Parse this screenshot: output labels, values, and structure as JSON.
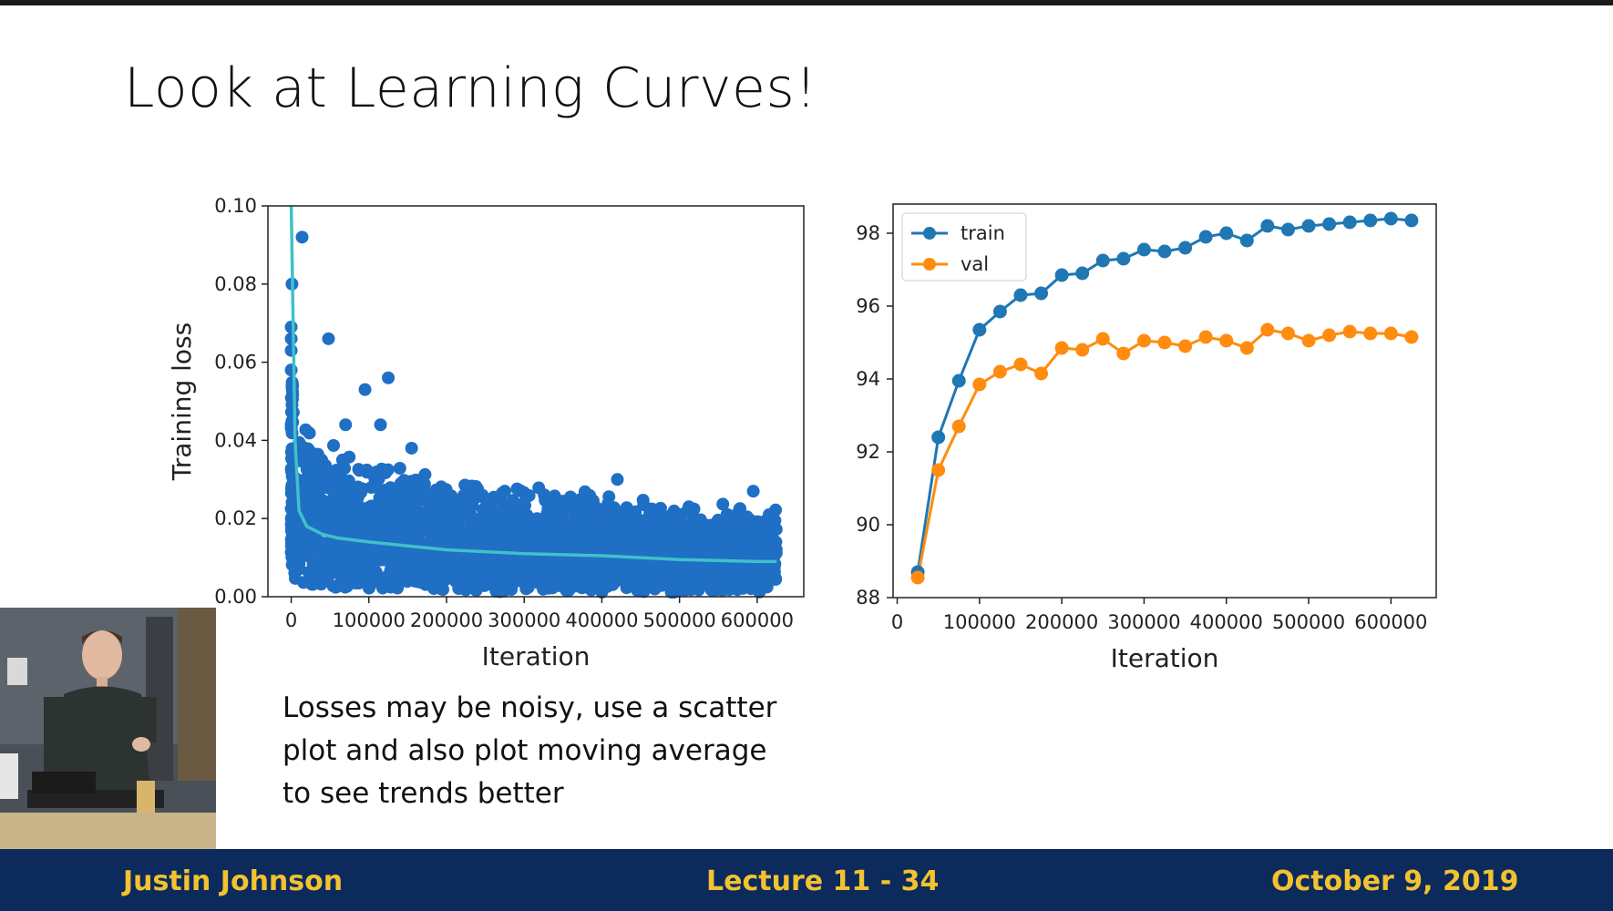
{
  "slide": {
    "title": "Look at Learning Curves!",
    "caption_lines": [
      "Losses may be noisy, use a scatter",
      "plot and also plot moving average",
      "to see trends better"
    ]
  },
  "footer": {
    "author": "Justin Johnson",
    "lecture": "Lecture 11 - 34",
    "date": "October 9, 2019"
  },
  "colors": {
    "footer_bg": "#0c2a5c",
    "footer_text": "#f2c230",
    "scatter": "#1f6fc5",
    "moving_avg": "#3fc1c9",
    "train": "#1f77b4",
    "val": "#ff8c0e"
  },
  "chart_data": [
    {
      "type": "scatter",
      "xlabel": "Iteration",
      "ylabel": "Training loss",
      "xlim": [
        -30000,
        660000
      ],
      "ylim": [
        0.0,
        0.1
      ],
      "xticks": [
        0,
        100000,
        200000,
        300000,
        400000,
        500000,
        600000
      ],
      "xtick_labels": [
        "0",
        "100000",
        "200000",
        "300000",
        "400000",
        "500000",
        "600000"
      ],
      "yticks": [
        0.0,
        0.02,
        0.04,
        0.06,
        0.08,
        0.1
      ],
      "ytick_labels": [
        "0.00",
        "0.02",
        "0.04",
        "0.06",
        "0.08",
        "0.10"
      ],
      "outliers": [
        {
          "x": 14000,
          "y": 0.092
        },
        {
          "x": 1000,
          "y": 0.08
        },
        {
          "x": 48000,
          "y": 0.066
        },
        {
          "x": 125000,
          "y": 0.056
        },
        {
          "x": 95000,
          "y": 0.053
        },
        {
          "x": 70000,
          "y": 0.044
        },
        {
          "x": 115000,
          "y": 0.044
        },
        {
          "x": 155000,
          "y": 0.038
        },
        {
          "x": 230000,
          "y": 0.028
        },
        {
          "x": 275000,
          "y": 0.027
        },
        {
          "x": 420000,
          "y": 0.03
        },
        {
          "x": 595000,
          "y": 0.027
        },
        {
          "x": 0,
          "y": 0.069
        },
        {
          "x": 0,
          "y": 0.066
        },
        {
          "x": 0,
          "y": 0.063
        },
        {
          "x": 0,
          "y": 0.058
        }
      ],
      "moving_average": {
        "x": [
          0,
          5000,
          10000,
          20000,
          40000,
          60000,
          100000,
          150000,
          200000,
          300000,
          400000,
          500000,
          600000,
          625000
        ],
        "y": [
          0.1,
          0.04,
          0.022,
          0.018,
          0.016,
          0.015,
          0.014,
          0.013,
          0.012,
          0.011,
          0.0105,
          0.0095,
          0.009,
          0.009
        ]
      }
    },
    {
      "type": "line",
      "xlabel": "Iteration",
      "ylabel": "",
      "xlim": [
        -5000,
        655000
      ],
      "ylim": [
        88,
        98.8
      ],
      "xticks": [
        0,
        100000,
        200000,
        300000,
        400000,
        500000,
        600000
      ],
      "xtick_labels": [
        "0",
        "100000",
        "200000",
        "300000",
        "400000",
        "500000",
        "600000"
      ],
      "yticks": [
        88,
        90,
        92,
        94,
        96,
        98
      ],
      "ytick_labels": [
        "88",
        "90",
        "92",
        "94",
        "96",
        "98"
      ],
      "legend_position": "top-left",
      "x": [
        25000,
        50000,
        75000,
        100000,
        125000,
        150000,
        175000,
        200000,
        225000,
        250000,
        275000,
        300000,
        325000,
        350000,
        375000,
        400000,
        425000,
        450000,
        475000,
        500000,
        525000,
        550000,
        575000,
        600000,
        625000
      ],
      "series": [
        {
          "name": "train",
          "values": [
            88.7,
            92.4,
            93.95,
            95.35,
            95.85,
            96.3,
            96.35,
            96.85,
            96.9,
            97.25,
            97.3,
            97.55,
            97.5,
            97.6,
            97.9,
            98.0,
            97.8,
            98.2,
            98.1,
            98.2,
            98.25,
            98.3,
            98.35,
            98.4,
            98.35
          ]
        },
        {
          "name": "val",
          "values": [
            88.55,
            91.5,
            92.7,
            93.85,
            94.2,
            94.4,
            94.15,
            94.85,
            94.8,
            95.1,
            94.7,
            95.05,
            95.0,
            94.9,
            95.15,
            95.05,
            94.85,
            95.35,
            95.25,
            95.05,
            95.2,
            95.3,
            95.25,
            95.25,
            95.15
          ]
        }
      ]
    }
  ]
}
